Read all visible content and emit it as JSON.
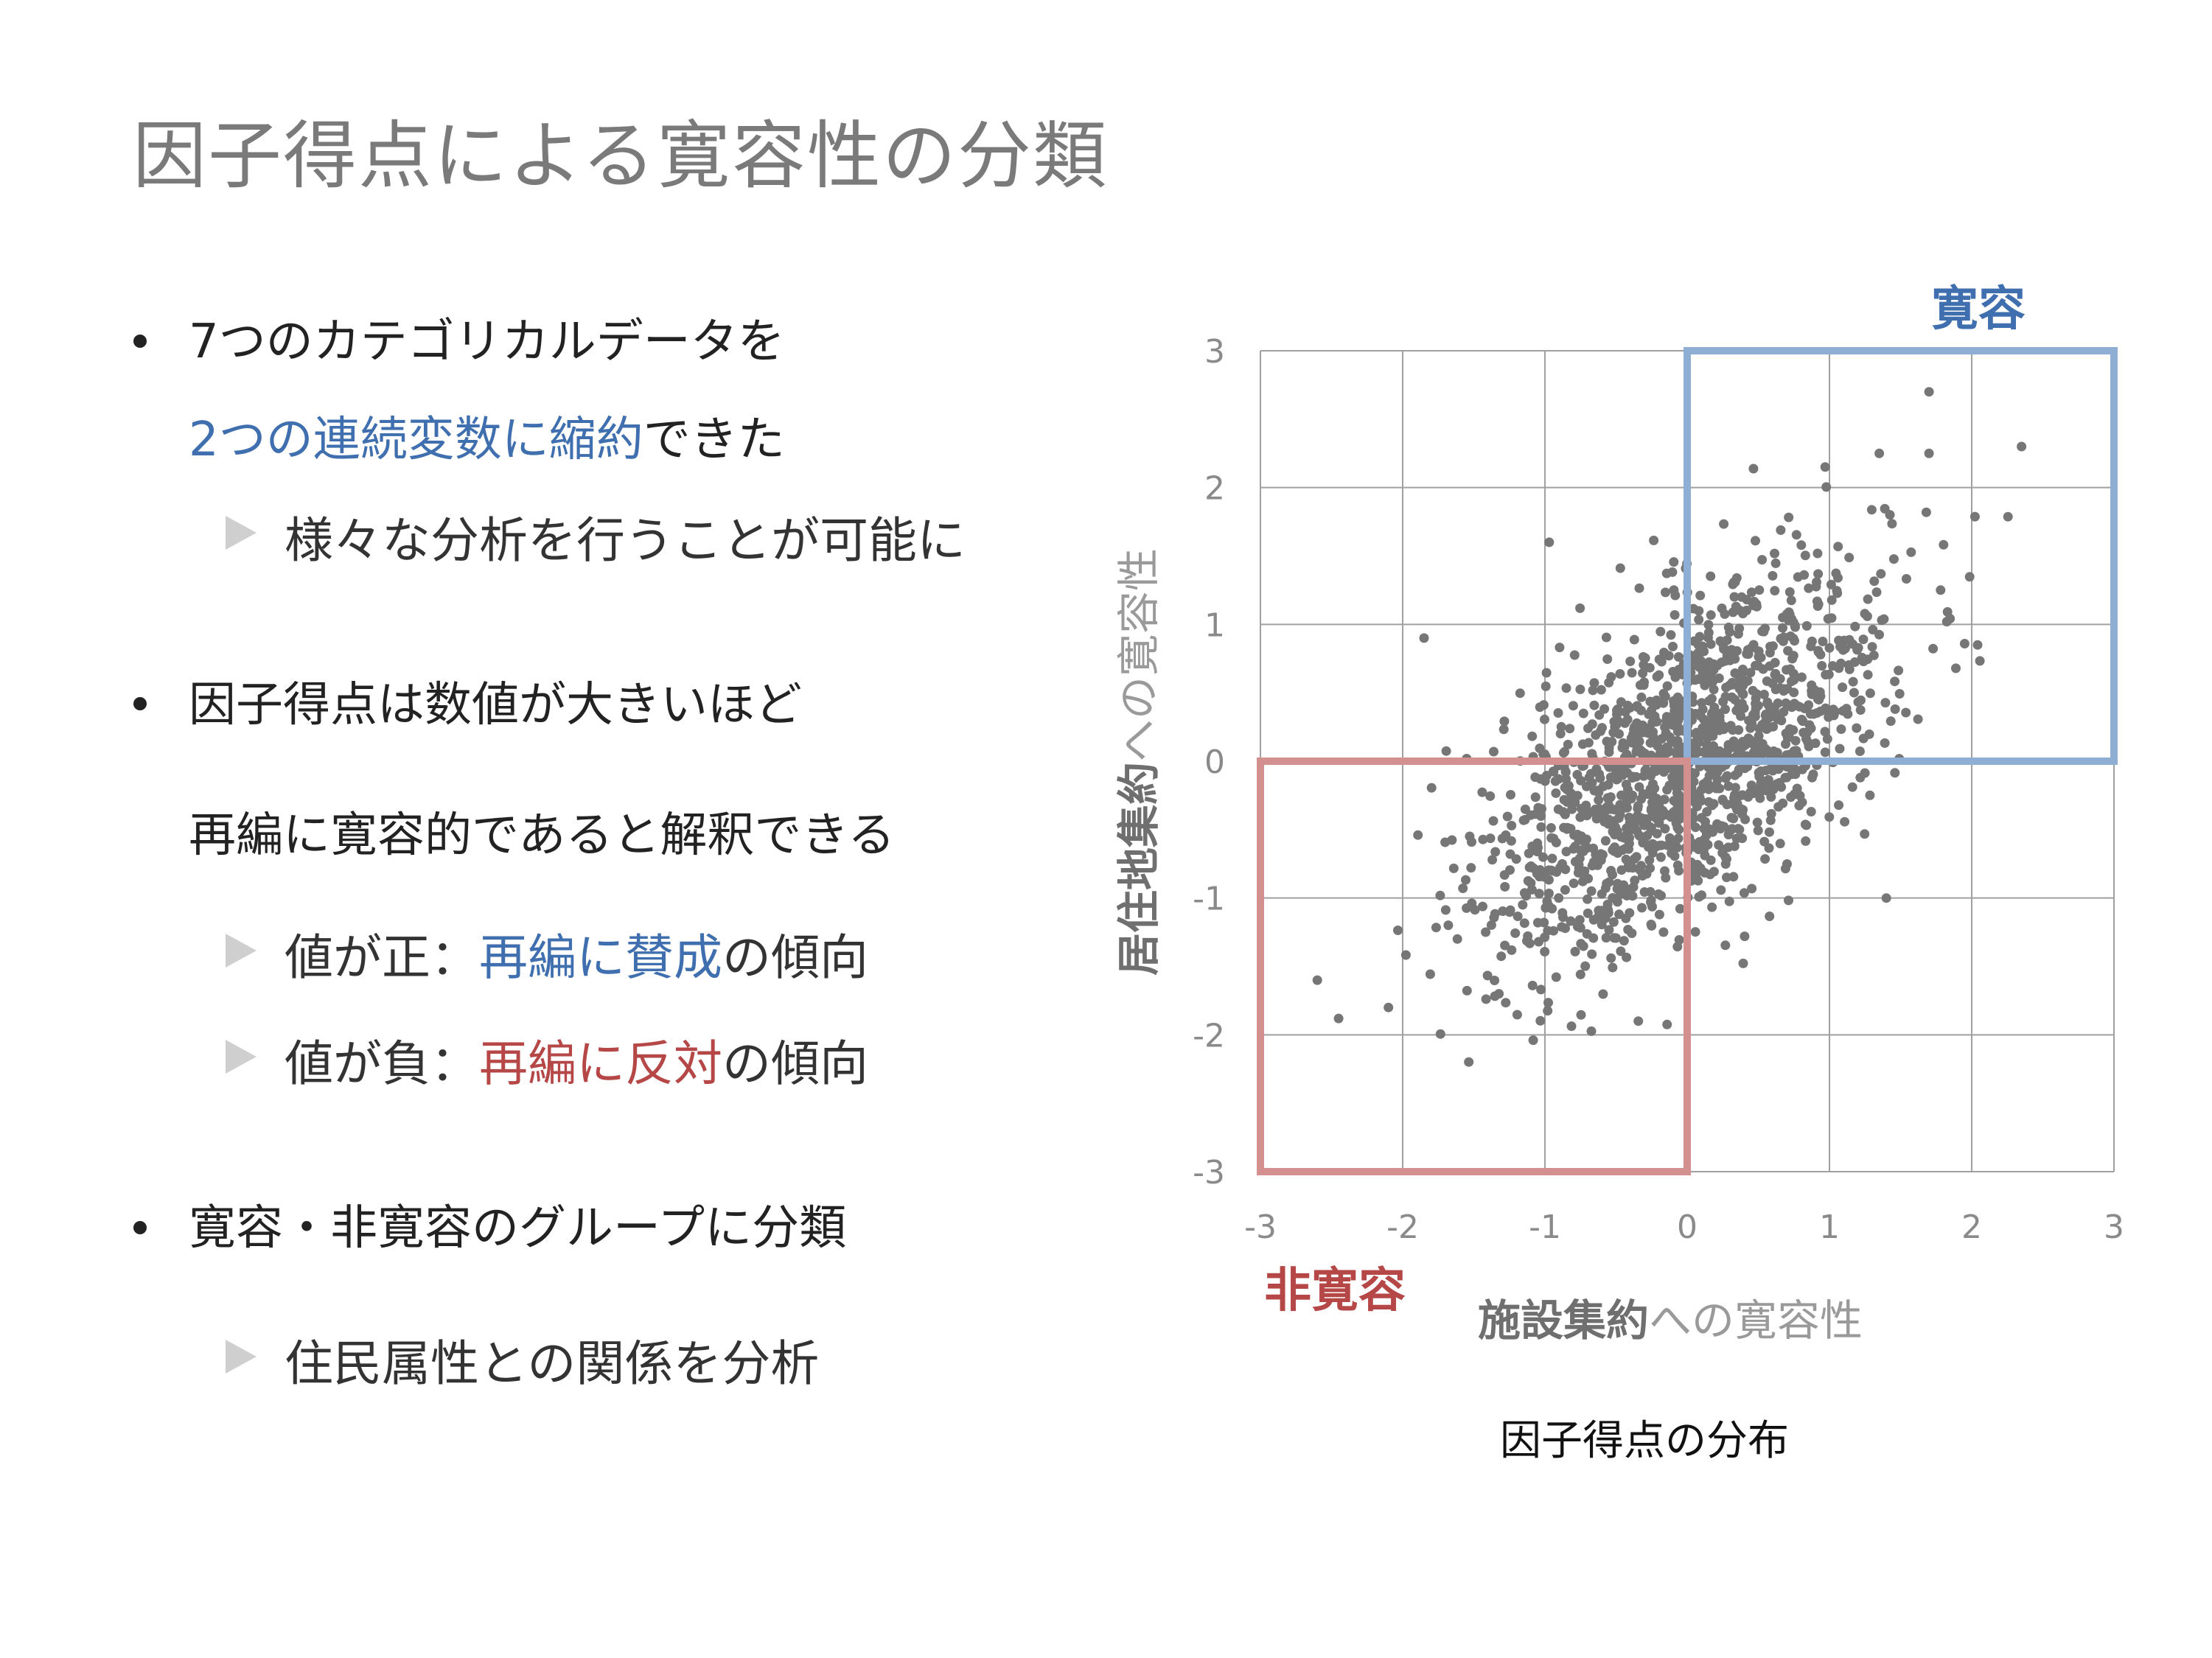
{
  "slide": {
    "title": "因子得点による寛容性の分類",
    "bullets": {
      "b1_line1": "7つのカテゴリカルデータを",
      "b1_line2_highlight": "2つの連続変数に縮約",
      "b1_line2_rest": "できた",
      "b1_sub": "様々な分析を行うことが可能に",
      "b2_line1": "因子得点は数値が大きいほど",
      "b2_line2": "再編に寛容的であると解釈できる",
      "b2_sub1_prefix": "値が正：",
      "b2_sub1_highlight": "再編に賛成",
      "b2_sub1_suffix": "の傾向",
      "b2_sub2_prefix": "値が負：",
      "b2_sub2_highlight": "再編に反対",
      "b2_sub2_suffix": "の傾向",
      "b3_line1": "寛容・非寛容のグループに分類",
      "b3_sub": "住民属性との関係を分析"
    }
  },
  "chart": {
    "x_title_bold": "施設集約",
    "x_title_rest": "への寛容性",
    "y_title_bold": "居住地集約",
    "y_title_rest": "への寛容性",
    "label_tolerant": "寛容",
    "label_intolerant": "非寛容",
    "caption": "因子得点の分布"
  },
  "colors": {
    "tolerant_box": "#8eaed4",
    "intolerant_box": "#d48f8f",
    "points": "#767676",
    "grid": "#a0a0a0"
  },
  "chart_data": {
    "type": "scatter",
    "title": "",
    "xlabel": "施設集約への寛容性",
    "ylabel": "居住地集約への寛容性",
    "xlim": [
      -3,
      3
    ],
    "ylim": [
      -3,
      3
    ],
    "x_ticks": [
      "-3",
      "-2",
      "-1",
      "0",
      "1",
      "2",
      "3"
    ],
    "y_ticks": [
      "-3",
      "-2",
      "-1",
      "0",
      "1",
      "2",
      "3"
    ],
    "grid": true,
    "regions": [
      {
        "name": "寛容",
        "x": [
          0,
          3
        ],
        "y": [
          0,
          3
        ]
      },
      {
        "name": "非寛容",
        "x": [
          -3,
          0
        ],
        "y": [
          -3,
          0
        ]
      }
    ],
    "distribution": {
      "n_points": 1500,
      "x_mean": 0,
      "y_mean": 0,
      "x_sd": 0.7,
      "y_sd": 0.7,
      "correlation": 0.6
    },
    "notable_points": [
      {
        "x": 1.7,
        "y": 2.7
      },
      {
        "x": 2.35,
        "y": 2.3
      },
      {
        "x": 1.7,
        "y": 2.25
      },
      {
        "x": 1.35,
        "y": 2.25
      },
      {
        "x": 0.97,
        "y": 2.15
      },
      {
        "x": -0.97,
        "y": 1.6
      },
      {
        "x": -1.85,
        "y": 0.9
      },
      {
        "x": -2.45,
        "y": -1.88
      },
      {
        "x": -2.6,
        "y": -1.6
      },
      {
        "x": -2.1,
        "y": -1.8
      },
      {
        "x": 1.4,
        "y": -1.0
      }
    ]
  }
}
